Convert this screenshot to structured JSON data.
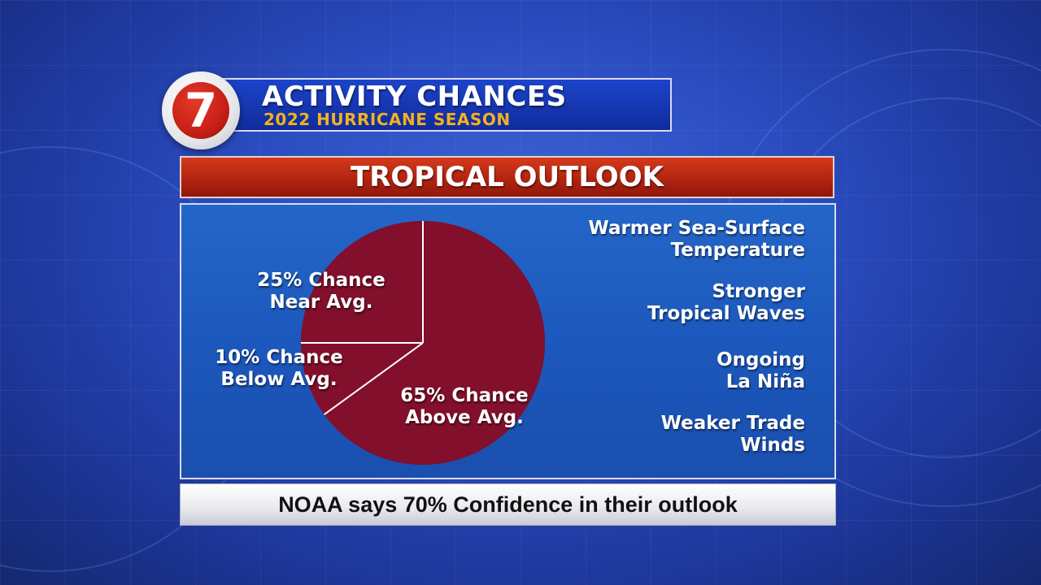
{
  "header": {
    "logo_text": "7",
    "title": "ACTIVITY CHANCES",
    "subtitle": "2022 HURRICANE SEASON"
  },
  "outlook": {
    "title": "TROPICAL OUTLOOK"
  },
  "chart_data": {
    "type": "pie",
    "slices": [
      {
        "label_line1": "65% Chance",
        "label_line2": "Above Avg.",
        "value": 65
      },
      {
        "label_line1": "10% Chance",
        "label_line2": "Below Avg.",
        "value": 10
      },
      {
        "label_line1": "25% Chance",
        "label_line2": "Near Avg.",
        "value": 25
      }
    ],
    "fill_color": "#820f2b",
    "divider_color": "#ffffff"
  },
  "factors": [
    "Warmer Sea-Surface\nTemperature",
    "Stronger\nTropical Waves",
    "Ongoing\nLa Niña",
    "Weaker Trade\nWinds"
  ],
  "footer": {
    "text": "NOAA says 70% Confidence in their outlook"
  },
  "colors": {
    "background": "#2a4cc0",
    "header_banner": "#1c43c9",
    "subtitle": "#f2b11f",
    "outlook_bar": "#b32411",
    "panel": "#1c58bd",
    "logo_red": "#c81f16"
  }
}
